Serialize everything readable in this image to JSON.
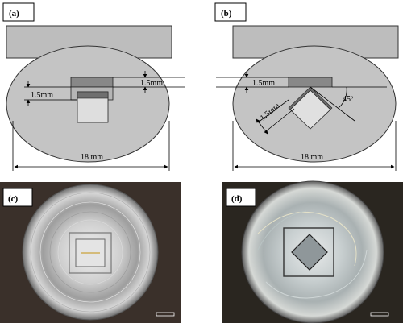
{
  "panels": {
    "a": {
      "label": "(a)",
      "dim_groove": "1.5mm",
      "dim_depth": "1.5mm",
      "dim_width": "18 mm"
    },
    "b": {
      "label": "(b)",
      "dim_groove": "1.5mm",
      "dim_side": "1.5mm",
      "angle": "45º",
      "dim_width": "18 mm"
    },
    "c": {
      "label": "(c)"
    },
    "d": {
      "label": "(d)"
    }
  },
  "colors": {
    "body_gray": "#c9c9c9",
    "shaft_gray": "#bdbdbd",
    "ellipse_gray": "#bfbfbf",
    "pin_light": "#d9d9d9",
    "pin_dark": "#7a7a7a",
    "photo_bg_c": "#3a302a",
    "photo_bg_d": "#2a2620"
  }
}
